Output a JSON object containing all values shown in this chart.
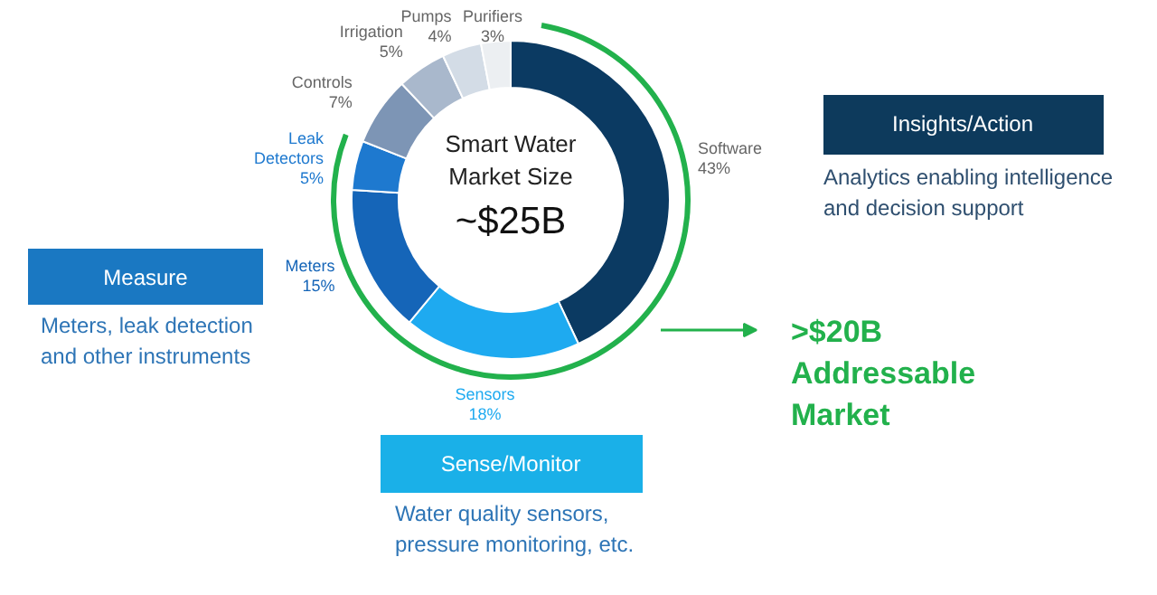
{
  "chart_data": {
    "type": "donut",
    "categories": [
      "Software",
      "Sensors",
      "Meters",
      "Leak Detectors",
      "Controls",
      "Irrigation",
      "Pumps",
      "Purifiers"
    ],
    "values": [
      43,
      18,
      15,
      5,
      7,
      5,
      4,
      3
    ],
    "colors": [
      "#0b3a62",
      "#1eaaf0",
      "#1565b8",
      "#1e79cf",
      "#7d95b5",
      "#a9b8cc",
      "#d3dce6",
      "#eceff2"
    ],
    "value_labels": [
      "43%",
      "18%",
      "15%",
      "5%",
      "7%",
      "5%",
      "4%",
      "3%"
    ],
    "annotations": [
      "Smart Water\nMarket Size",
      "~$25B",
      "Insights/Action",
      "Analytics enabling intelligence\nand decision support",
      "Measure",
      "Meters, leak detection\nand other instruments",
      "Sense/Monitor",
      "Water quality sensors,\npressure monitoring, etc.",
      ">$20B\nAddressable\nMarket"
    ]
  }
}
